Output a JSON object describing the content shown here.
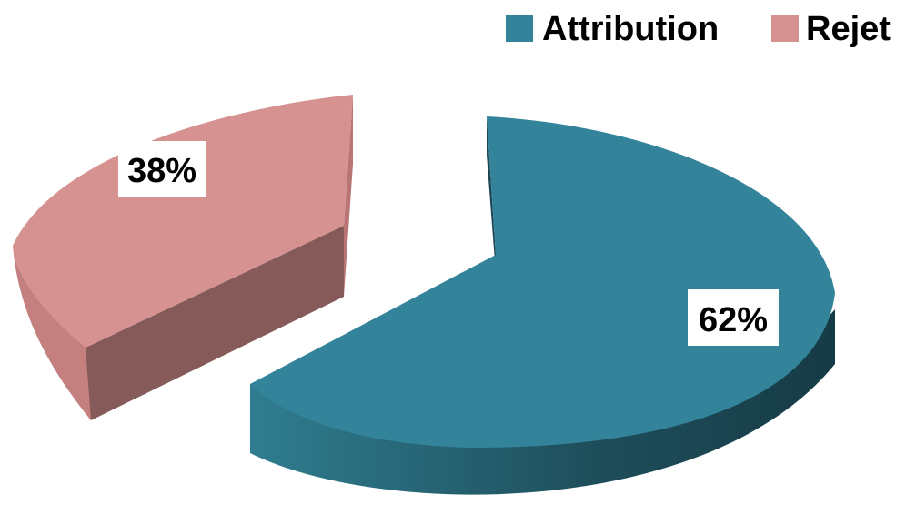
{
  "chart_data": {
    "type": "pie",
    "style": "3d-exploded",
    "title": "",
    "legend_position": "top-right",
    "slices": [
      {
        "name": "Attribution",
        "value": 62,
        "label": "62%",
        "color": "#33849A"
      },
      {
        "name": "Rejet",
        "value": 38,
        "label": "38%",
        "color": "#D69291"
      }
    ]
  }
}
